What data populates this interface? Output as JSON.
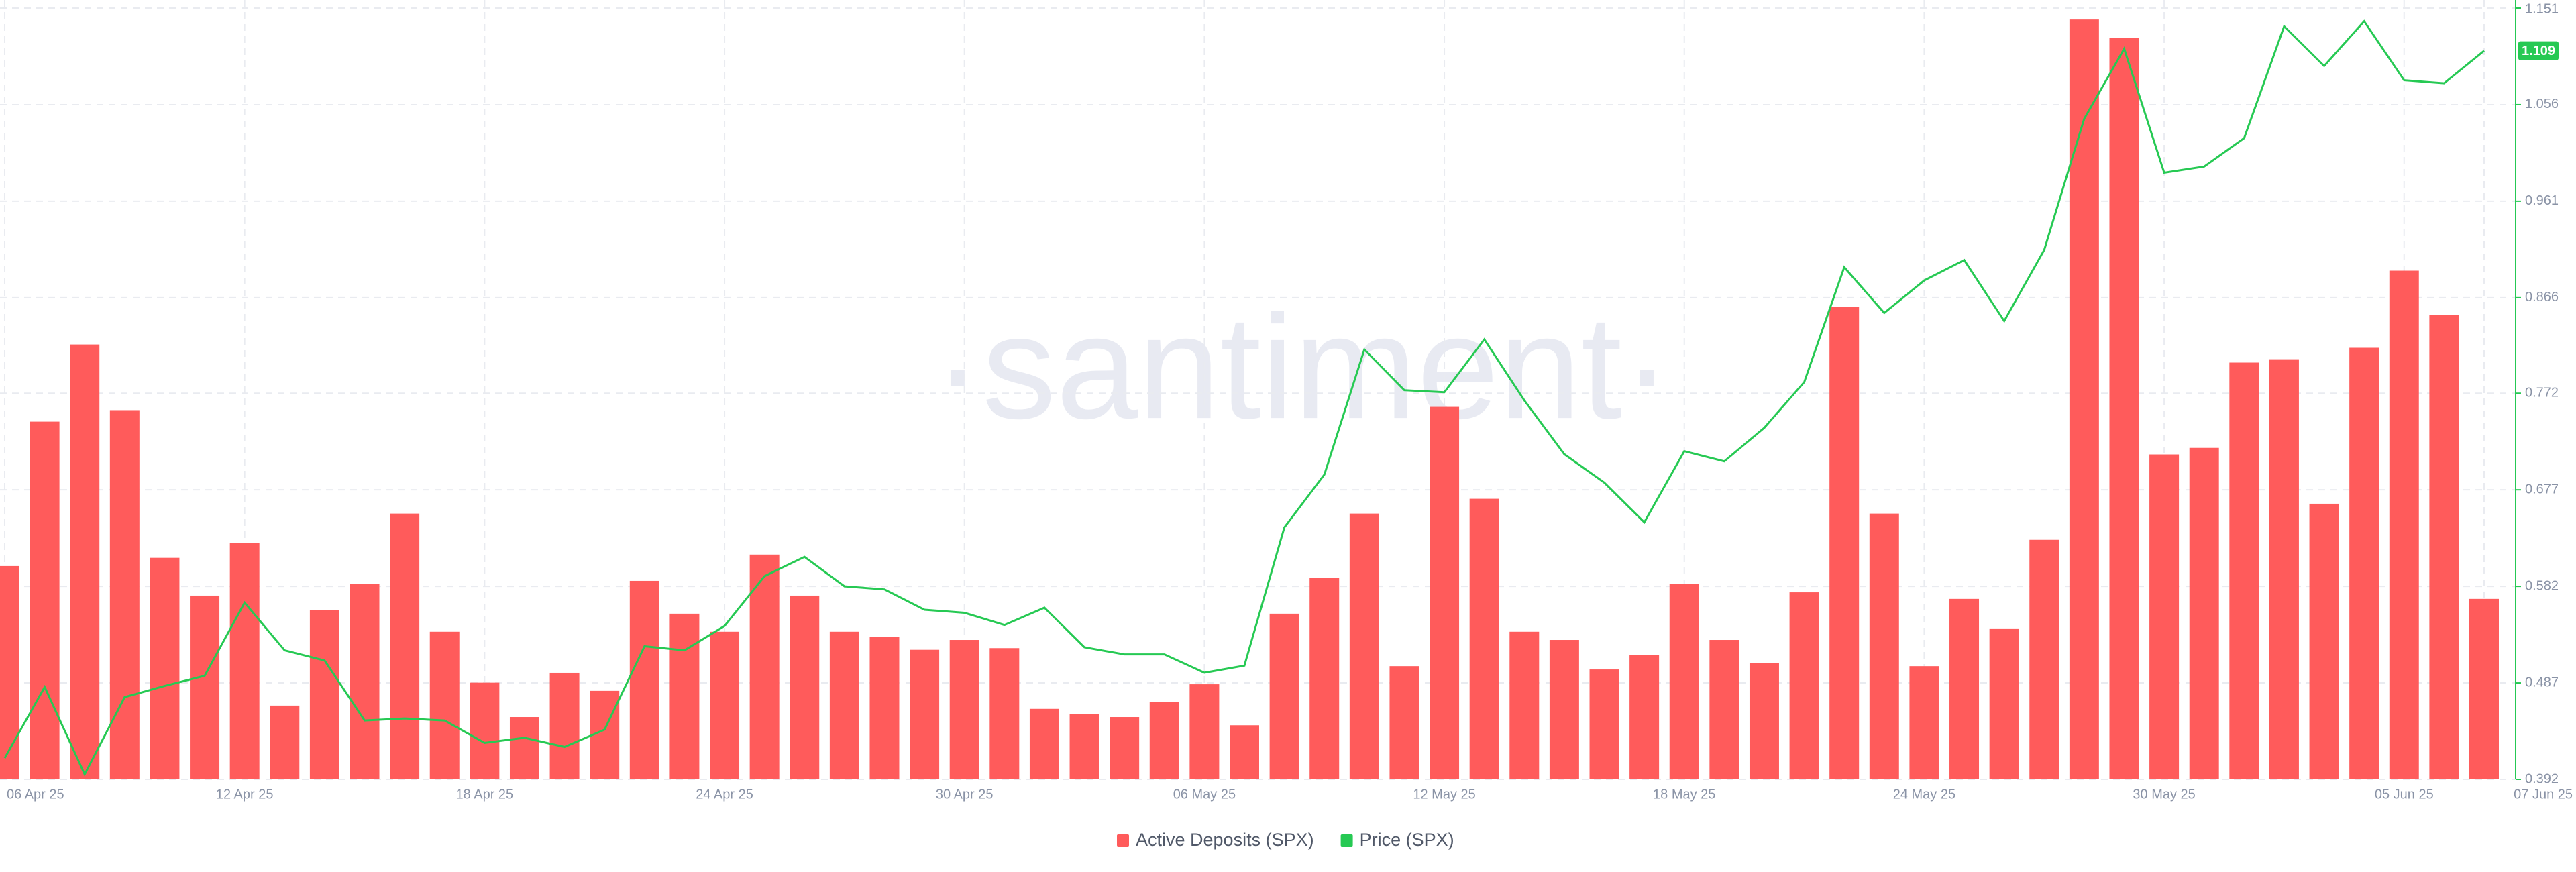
{
  "chart_data": {
    "type": "bar",
    "watermark": "·santiment·",
    "categories": [
      "06 Apr 25",
      null,
      null,
      null,
      null,
      null,
      "12 Apr 25",
      null,
      null,
      null,
      null,
      null,
      "18 Apr 25",
      null,
      null,
      null,
      null,
      null,
      "24 Apr 25",
      null,
      null,
      null,
      null,
      null,
      "30 Apr 25",
      null,
      null,
      null,
      null,
      null,
      "06 May 25",
      null,
      null,
      null,
      null,
      null,
      "12 May 25",
      null,
      null,
      null,
      null,
      null,
      "18 May 25",
      null,
      null,
      null,
      null,
      null,
      "24 May 25",
      null,
      null,
      null,
      null,
      null,
      "30 May 25",
      null,
      null,
      null,
      null,
      null,
      "05 Jun 25",
      null,
      "07 Jun 25"
    ],
    "series": [
      {
        "name": "Active Deposits (SPX)",
        "type": "bar",
        "color": "#ff5b5b",
        "values": [
          130,
          218,
          265,
          225,
          135,
          112,
          144,
          45,
          103,
          119,
          162,
          90,
          59,
          38,
          65,
          54,
          121,
          101,
          90,
          137,
          112,
          90,
          87,
          79,
          85,
          80,
          43,
          40,
          38,
          47,
          58,
          33,
          101,
          123,
          162,
          69,
          227,
          171,
          90,
          85,
          67,
          76,
          119,
          85,
          71,
          114,
          288,
          162,
          69,
          110,
          92,
          146,
          463,
          452,
          198,
          202,
          254,
          256,
          168,
          263,
          310,
          283,
          110
        ]
      },
      {
        "name": "Price (SPX)",
        "type": "line",
        "axis": "y2",
        "color": "#26c953",
        "values": [
          0.413,
          0.483,
          0.397,
          0.473,
          0.484,
          0.494,
          0.566,
          0.519,
          0.509,
          0.45,
          0.452,
          0.45,
          0.428,
          0.433,
          0.424,
          0.441,
          0.523,
          0.519,
          0.543,
          0.592,
          0.611,
          0.582,
          0.579,
          0.559,
          0.556,
          0.544,
          0.561,
          0.522,
          0.515,
          0.515,
          0.497,
          0.504,
          0.64,
          0.692,
          0.815,
          0.775,
          0.773,
          0.825,
          0.765,
          0.712,
          0.684,
          0.645,
          0.715,
          0.705,
          0.738,
          0.783,
          0.896,
          0.851,
          0.883,
          0.903,
          0.843,
          0.913,
          1.042,
          1.111,
          0.989,
          0.995,
          1.023,
          1.133,
          1.094,
          1.138,
          1.08,
          1.077,
          1.109
        ]
      }
    ],
    "ylim": [
      0,
      470
    ],
    "y2lim": [
      0.392,
      1.151
    ],
    "y2ticks": [
      0.392,
      0.487,
      0.582,
      0.677,
      0.772,
      0.866,
      0.961,
      1.056,
      1.151
    ],
    "grid": true,
    "legend": "bottom"
  }
}
